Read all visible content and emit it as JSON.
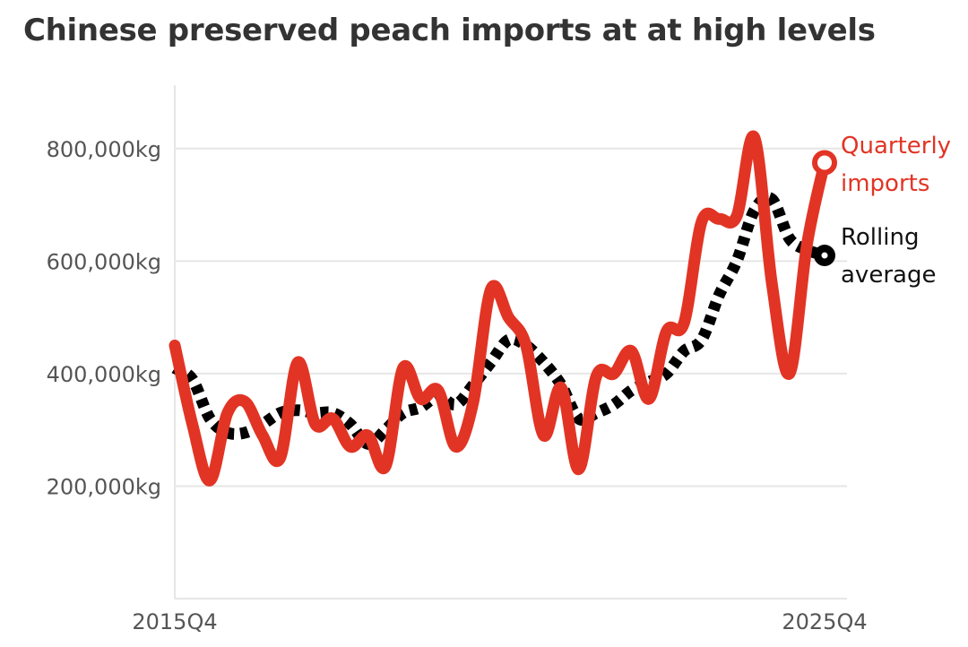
{
  "chart_data": {
    "type": "line",
    "title": "Chinese preserved peach imports at at high levels",
    "xlabel": "",
    "ylabel": "",
    "y_unit": "kg",
    "x_start": "2015Q4",
    "x_end": "2025Q4",
    "x_tick_labels": [
      "2015Q4",
      "2025Q4"
    ],
    "ylim": [
      0,
      900000
    ],
    "y_ticks": [
      200000,
      400000,
      600000,
      800000
    ],
    "y_tick_labels": [
      "200,000kg",
      "400,000kg",
      "600,000kg",
      "800,000kg"
    ],
    "grid": "horizontal",
    "legend": "direct labels at line ends",
    "colors": {
      "quarterly": "#e23424",
      "rolling": "#000000"
    },
    "series": [
      {
        "name": "Quarterly imports",
        "label_lines": [
          "Quarterly",
          "imports"
        ],
        "values": [
          450000,
          310000,
          210000,
          330000,
          350000,
          290000,
          250000,
          420000,
          310000,
          320000,
          270000,
          290000,
          235000,
          410000,
          355000,
          370000,
          270000,
          350000,
          550000,
          500000,
          450000,
          290000,
          375000,
          230000,
          395000,
          400000,
          440000,
          355000,
          475000,
          490000,
          670000,
          675000,
          680000,
          820000,
          560000,
          400000,
          630000,
          775000
        ]
      },
      {
        "name": "Rolling average",
        "label_lines": [
          "Rolling",
          "average"
        ],
        "values": [
          410000,
          390000,
          320000,
          295000,
          295000,
          310000,
          330000,
          335000,
          330000,
          330000,
          310000,
          275000,
          300000,
          330000,
          340000,
          360000,
          345000,
          380000,
          420000,
          460000,
          450000,
          420000,
          380000,
          320000,
          330000,
          345000,
          370000,
          385000,
          400000,
          440000,
          460000,
          540000,
          600000,
          690000,
          710000,
          640000,
          620000,
          610000
        ]
      }
    ]
  }
}
